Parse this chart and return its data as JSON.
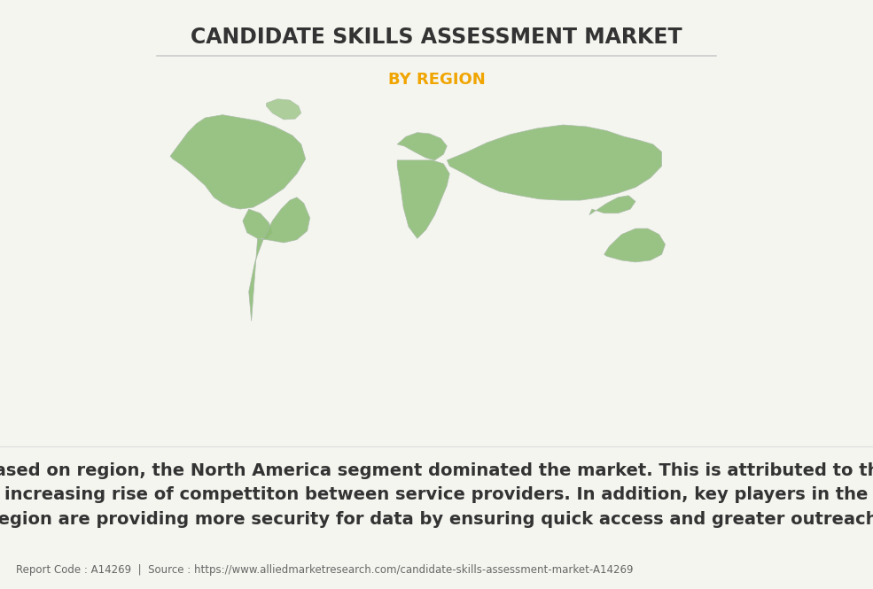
{
  "title": "CANDIDATE SKILLS ASSESSMENT MARKET",
  "subtitle": "BY REGION",
  "title_color": "#333333",
  "subtitle_color": "#f0a500",
  "background_color": "#f5f5f0",
  "body_text": "Based on region, the North America segment dominated the market. This is attributed to the\nincreasing rise of compettiton between service providers. In addition, key players in the\nregion are providing more security for data by ensuring quick access and greater outreach.",
  "footer_text": "Report Code : A14269  |  Source : https://www.alliedmarketresearch.com/candidate-skills-assessment-market-A14269",
  "title_fontsize": 17,
  "subtitle_fontsize": 13,
  "body_fontsize": 14,
  "footer_fontsize": 8.5,
  "divider_color": "#cccccc",
  "land_color": "#8fbe78",
  "border_color": "#ffffff",
  "shadow_color": "#9aaa8a"
}
